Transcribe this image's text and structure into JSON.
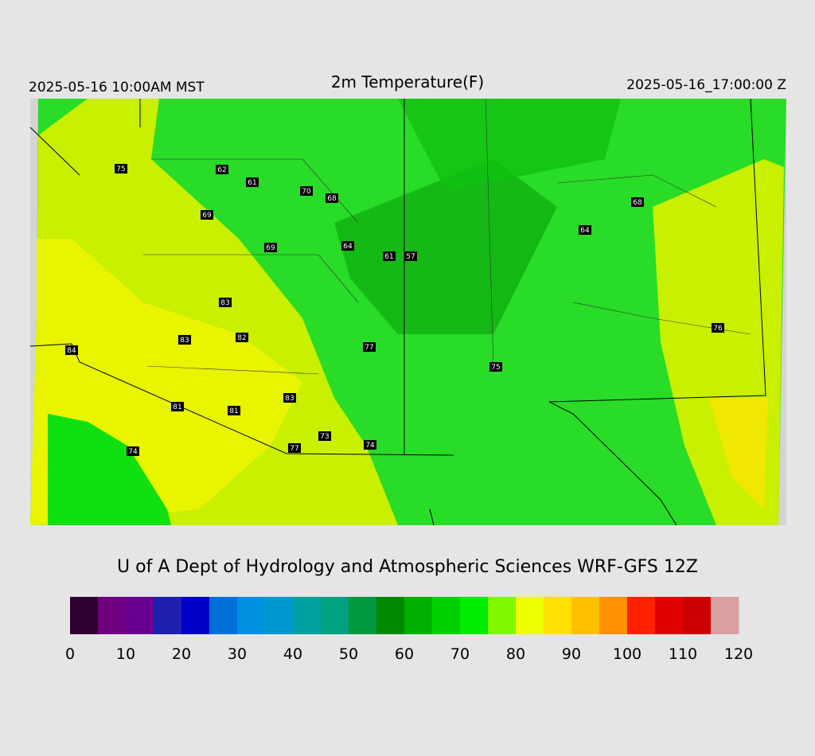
{
  "header": {
    "left": "2025-05-16 10:00AM MST",
    "title": "2m Temperature(F)",
    "right": "2025-05-16_17:00:00 Z"
  },
  "map": {
    "station_values": [
      75,
      62,
      61,
      70,
      68,
      69,
      69,
      64,
      61,
      57,
      64,
      68,
      83,
      83,
      82,
      84,
      77,
      75,
      76,
      83,
      81,
      81,
      73,
      74,
      77,
      74
    ]
  },
  "credit": "U of A Dept of Hydrology and Atmospheric Sciences WRF-GFS 12Z",
  "colorbar": {
    "lim": [
      0,
      120
    ],
    "ticks": [
      0,
      10,
      20,
      30,
      40,
      50,
      60,
      70,
      80,
      90,
      100,
      110,
      120
    ],
    "colors": [
      "#300030",
      "#700080",
      "#6a0090",
      "#2020b0",
      "#0000c8",
      "#0070d8",
      "#0090e0",
      "#0098d0",
      "#00a0a0",
      "#00a080",
      "#009840",
      "#008800",
      "#00b000",
      "#00d000",
      "#00ec00",
      "#80f800",
      "#eeff00",
      "#ffe000",
      "#ffc000",
      "#ff9000",
      "#ff2000",
      "#e00000",
      "#cc0000",
      "#d8a0a0"
    ]
  }
}
